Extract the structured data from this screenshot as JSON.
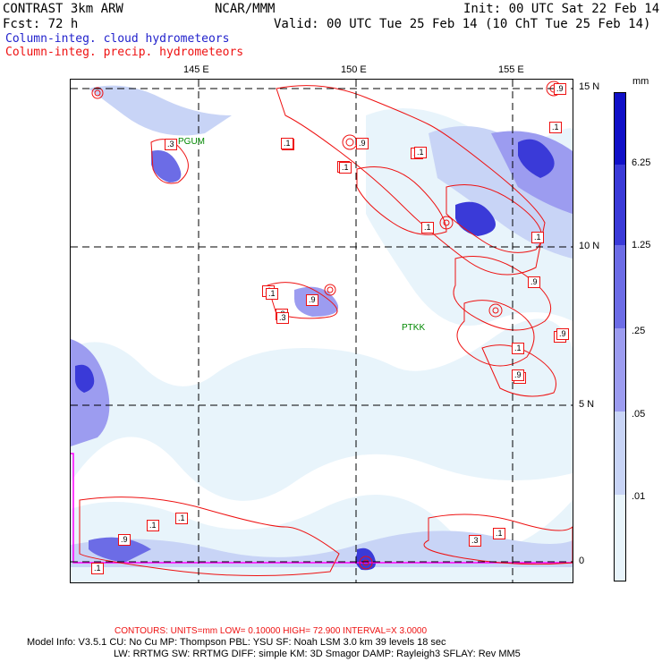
{
  "header": {
    "line1_left": "CONTRAST  3km ARW",
    "line1_center": "NCAR/MMM",
    "line1_right": "Init: 00 UTC Sat 22 Feb 14",
    "line2_left": "Fcst:   72 h",
    "line2_right": "Valid: 00 UTC Tue 25 Feb 14 (10 ChT Tue 25 Feb 14)",
    "field1": "Column-integ. cloud hydrometeors",
    "field2": "Column-integ. precip. hydrometeors"
  },
  "map": {
    "lon_labels": [
      "145 E",
      "150 E",
      "155 E"
    ],
    "lat_labels": [
      "15 N",
      "10 N",
      "5 N",
      "0"
    ],
    "stations": [
      "PGUM",
      "PTKK"
    ],
    "contour_labels": [
      ".3",
      ".1",
      ".9",
      ".1",
      ".9",
      ".9",
      ".1",
      ".1",
      ".1",
      ".1",
      ".9",
      ".3",
      ".1",
      ".9",
      ".1",
      ".3",
      ".1",
      ".9",
      ".1",
      ".1",
      ".9",
      ".1",
      ".9",
      ".1",
      ".1",
      ".3",
      ".1",
      ".9",
      ".1"
    ],
    "colors": {
      "land": "#ff00ff",
      "precip": "#ee1111",
      "grid": "#000000"
    }
  },
  "colorbar": {
    "unit": "mm",
    "labels": [
      "6.25",
      "1.25",
      ".25",
      ".05",
      ".01"
    ],
    "colors": [
      "#1010c8",
      "#3a3ad8",
      "#6c6ce6",
      "#9c9cf0",
      "#c8d4f6",
      "#e8f4fb",
      "#ffffff"
    ]
  },
  "footer": {
    "contours": "CONTOURS:  UNITS=mm  LOW= 0.10000      HIGH=  72.900      INTERVAL=X  3.0000",
    "model_line1": "Model Info: V3.5.1     CU: No Cu      MP: Thompson      PBL: YSU       SF: Noah LSM       3.0 km   39 levels    18 sec",
    "model_line2": "LW: RRTMG    SW: RRTMG   DIFF: simple KM: 3D Smagor DAMP: Rayleigh3   SFLAY: Rev MM5"
  }
}
